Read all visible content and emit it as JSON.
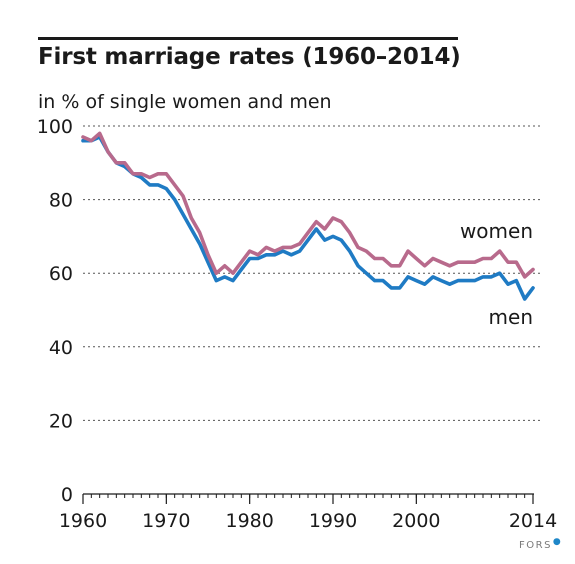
{
  "header": {
    "title": "First marriage rates (1960–2014)",
    "subtitle": "in % of single women and men"
  },
  "brand": {
    "text": "FORS"
  },
  "colors": {
    "women": "#b86a8c",
    "men": "#1f7bc4",
    "grid": "#555555",
    "axis": "#1a1a1a"
  },
  "chart_data": {
    "type": "line",
    "title": "First marriage rates (1960–2014)",
    "ylabel": "in % of single women and men",
    "xlabel": "",
    "xlim": [
      1960,
      2014
    ],
    "ylim": [
      0,
      100
    ],
    "x_ticks": [
      1960,
      1970,
      1980,
      1990,
      2000,
      2014
    ],
    "x_tick_labels": [
      "1960",
      "1970",
      "1980",
      "1990",
      "2000",
      "2014"
    ],
    "y_ticks": [
      0,
      20,
      40,
      60,
      80,
      100
    ],
    "y_tick_labels": [
      "0",
      "20",
      "40",
      "60",
      "80",
      "100"
    ],
    "grid": "horizontal dotted",
    "x": [
      1960,
      1961,
      1962,
      1963,
      1964,
      1965,
      1966,
      1967,
      1968,
      1969,
      1970,
      1971,
      1972,
      1973,
      1974,
      1975,
      1976,
      1977,
      1978,
      1979,
      1980,
      1981,
      1982,
      1983,
      1984,
      1985,
      1986,
      1987,
      1988,
      1989,
      1990,
      1991,
      1992,
      1993,
      1994,
      1995,
      1996,
      1997,
      1998,
      1999,
      2000,
      2001,
      2002,
      2003,
      2004,
      2005,
      2006,
      2007,
      2008,
      2009,
      2010,
      2011,
      2012,
      2013,
      2014
    ],
    "series": [
      {
        "name": "women",
        "values": [
          97,
          96,
          98,
          93,
          90,
          90,
          87,
          87,
          86,
          87,
          87,
          84,
          81,
          75,
          71,
          65,
          60,
          62,
          60,
          63,
          66,
          65,
          67,
          66,
          67,
          67,
          68,
          71,
          74,
          72,
          75,
          74,
          71,
          67,
          66,
          64,
          64,
          62,
          62,
          66,
          64,
          62,
          64,
          63,
          62,
          63,
          63,
          63,
          64,
          64,
          66,
          63,
          63,
          59,
          61
        ]
      },
      {
        "name": "men",
        "values": [
          96,
          96,
          97,
          93,
          90,
          89,
          87,
          86,
          84,
          84,
          83,
          80,
          76,
          72,
          68,
          63,
          58,
          59,
          58,
          61,
          64,
          64,
          65,
          65,
          66,
          65,
          66,
          69,
          72,
          69,
          70,
          69,
          66,
          62,
          60,
          58,
          58,
          56,
          56,
          59,
          58,
          57,
          59,
          58,
          57,
          58,
          58,
          58,
          59,
          59,
          60,
          57,
          58,
          53,
          56
        ]
      }
    ]
  }
}
